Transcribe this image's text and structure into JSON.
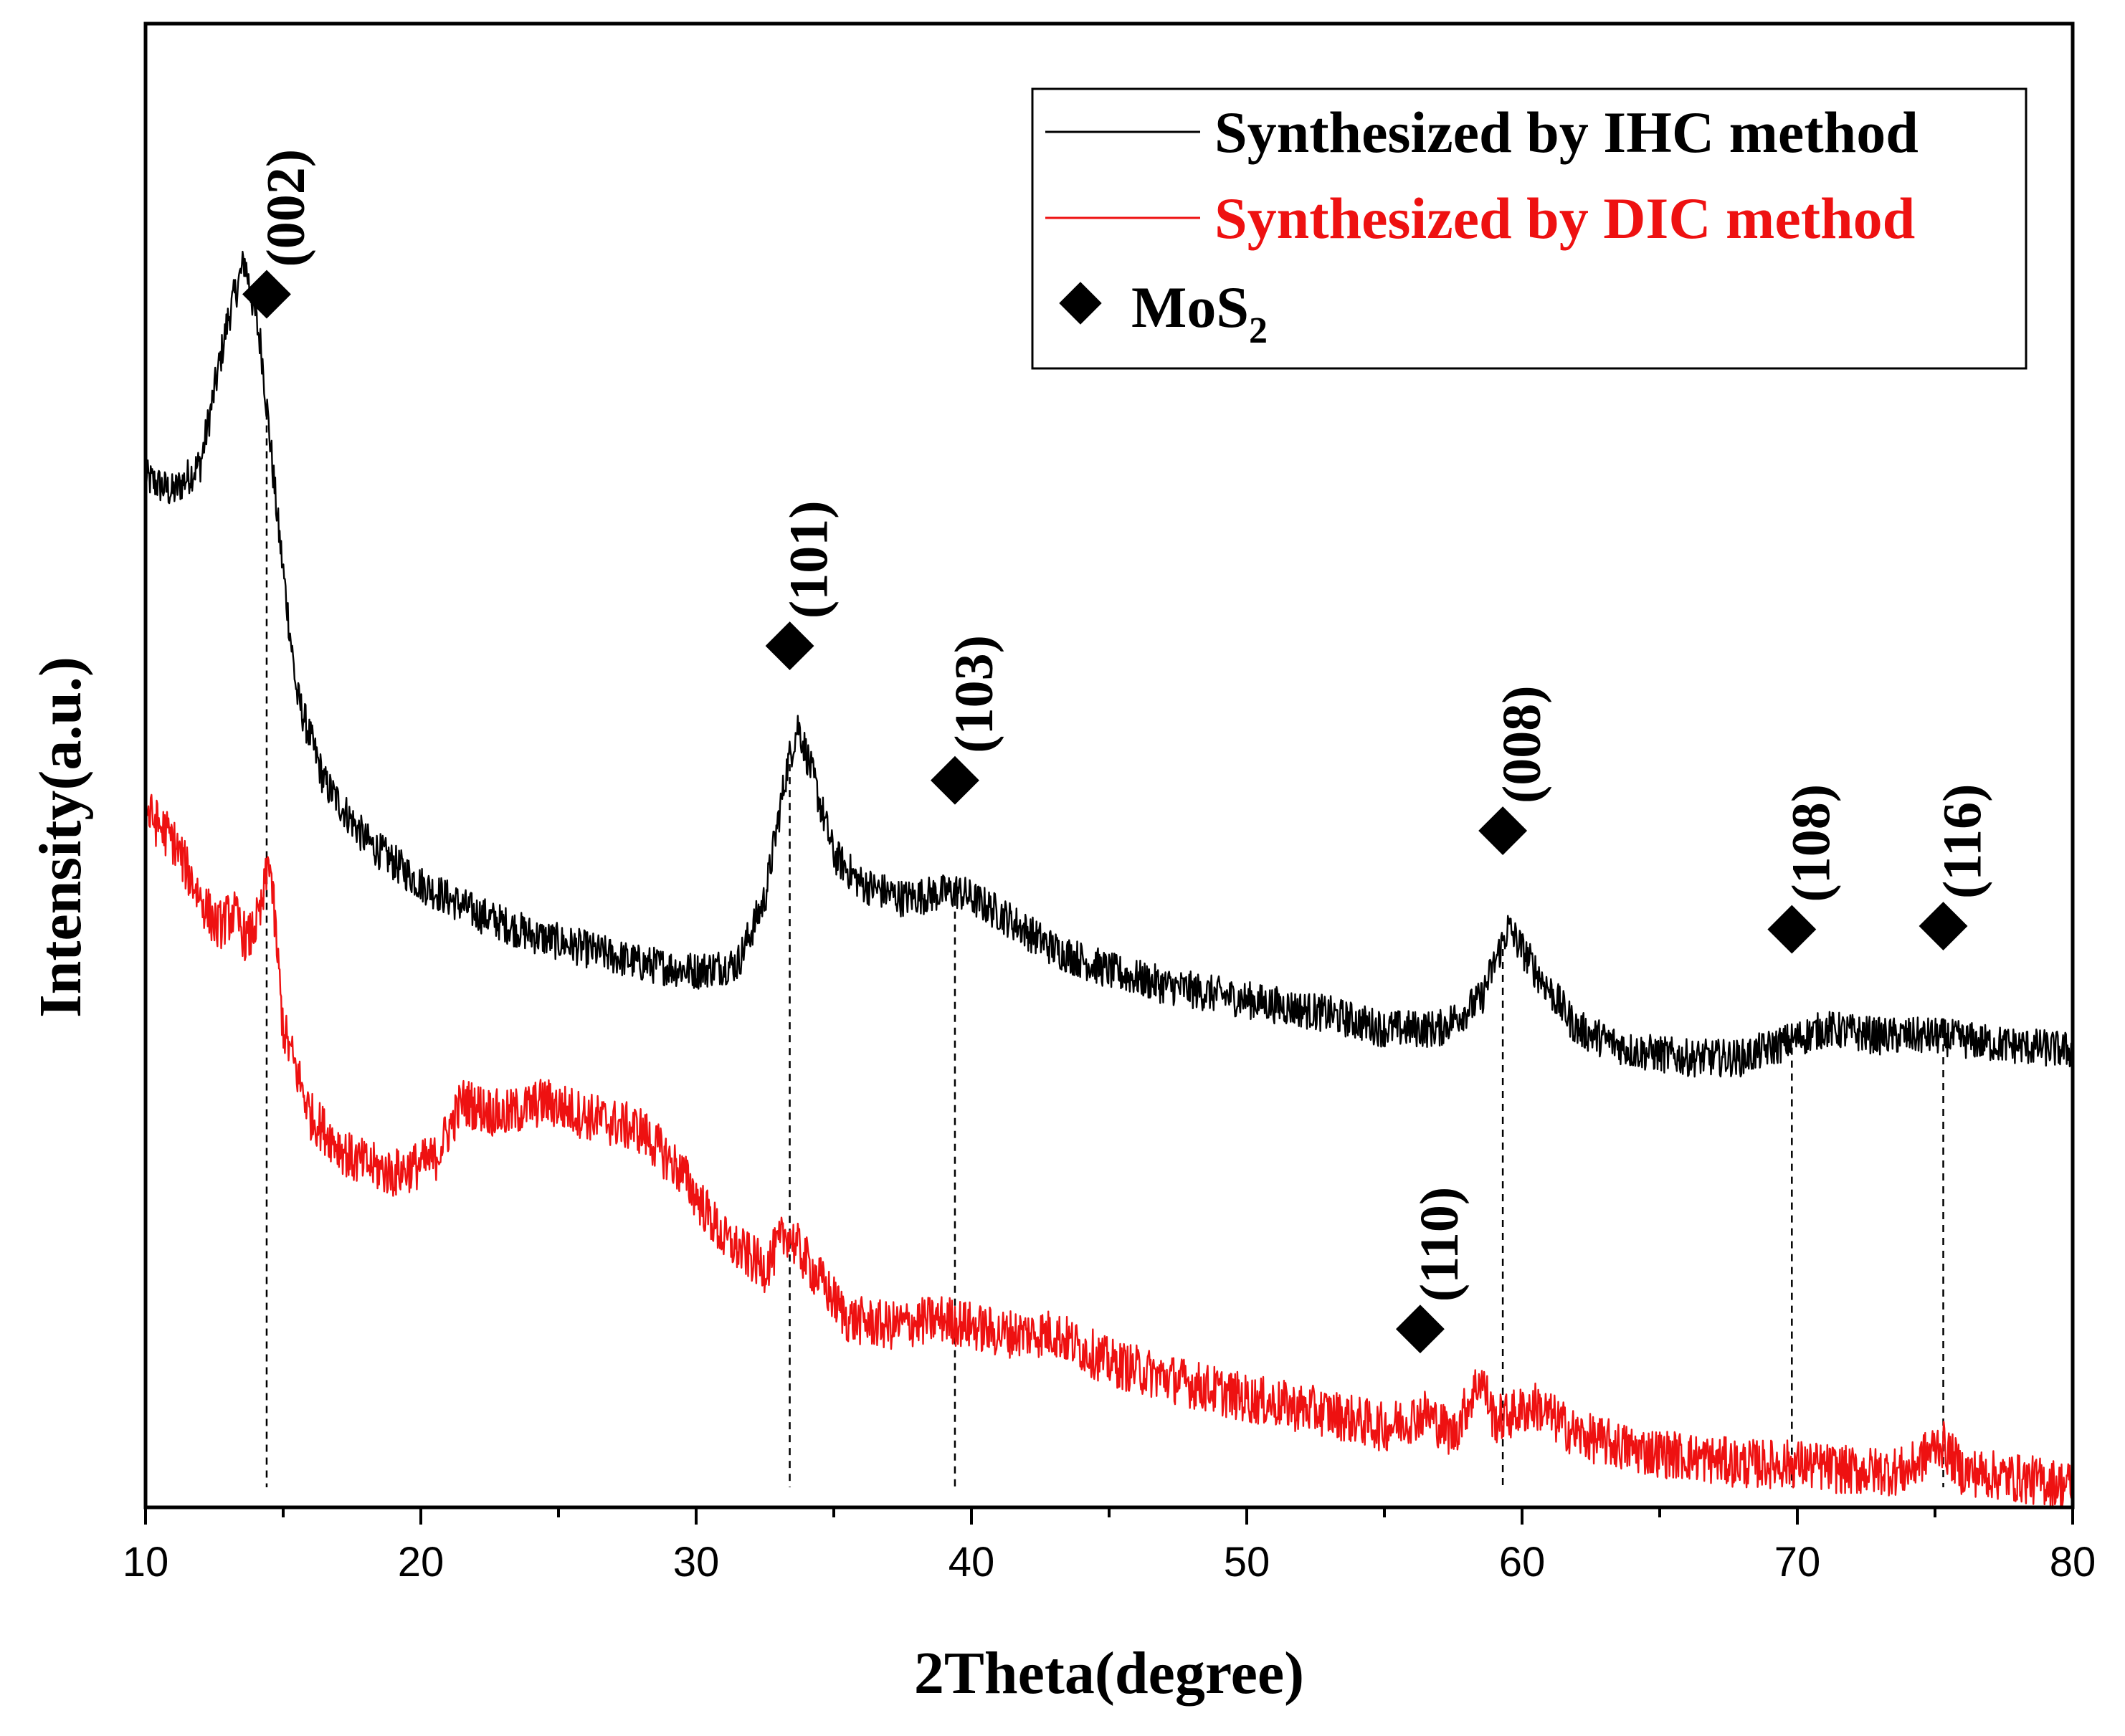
{
  "chart_data": {
    "type": "line",
    "title": "",
    "xlabel": "2Theta(degree)",
    "ylabel": "Intensity(a.u.)",
    "xlim": [
      10,
      80
    ],
    "ylim": [
      0,
      100
    ],
    "x_ticks": [
      10,
      20,
      30,
      40,
      50,
      60,
      70,
      80
    ],
    "y_ticks_shown": false,
    "grid": false,
    "legend_position": "top-right",
    "series": [
      {
        "name": "Synthesized by IHC method",
        "color": "#000000",
        "points": [
          [
            10,
            71
          ],
          [
            11,
            70
          ],
          [
            12,
            72
          ],
          [
            13,
            82
          ],
          [
            13.6,
            86
          ],
          [
            14.2,
            80
          ],
          [
            14.8,
            68
          ],
          [
            15.5,
            56
          ],
          [
            16.5,
            50
          ],
          [
            18,
            46
          ],
          [
            20,
            43
          ],
          [
            22,
            41
          ],
          [
            24,
            39.5
          ],
          [
            26,
            38.5
          ],
          [
            28,
            37.5
          ],
          [
            30,
            37
          ],
          [
            31.5,
            37.5
          ],
          [
            32.5,
            42
          ],
          [
            33.3,
            51
          ],
          [
            33.7,
            54
          ],
          [
            34.3,
            50
          ],
          [
            35,
            45
          ],
          [
            36,
            43
          ],
          [
            37.5,
            42
          ],
          [
            39.5,
            42.5
          ],
          [
            41,
            41
          ],
          [
            43,
            38.5
          ],
          [
            45,
            37
          ],
          [
            47,
            36
          ],
          [
            50,
            35
          ],
          [
            53,
            34
          ],
          [
            55,
            33
          ],
          [
            57,
            33
          ],
          [
            58.5,
            35
          ],
          [
            59.5,
            40
          ],
          [
            60.5,
            37
          ],
          [
            62,
            33
          ],
          [
            64,
            31.5
          ],
          [
            66,
            31
          ],
          [
            68,
            31
          ],
          [
            69.5,
            32
          ],
          [
            71,
            33
          ],
          [
            73,
            32.5
          ],
          [
            75,
            32.5
          ],
          [
            77,
            32
          ],
          [
            80,
            31.5
          ]
        ]
      },
      {
        "name": "Synthesized by DIC method",
        "color": "#ee1111",
        "points": [
          [
            10,
            48
          ],
          [
            11,
            46
          ],
          [
            12,
            42
          ],
          [
            12.6,
            40
          ],
          [
            13.2,
            41
          ],
          [
            13.7,
            39
          ],
          [
            14.2,
            41
          ],
          [
            14.5,
            45
          ],
          [
            15,
            33
          ],
          [
            16,
            27
          ],
          [
            17.5,
            24
          ],
          [
            19,
            23
          ],
          [
            20.5,
            24
          ],
          [
            21.5,
            28
          ],
          [
            23,
            27
          ],
          [
            24.5,
            28
          ],
          [
            26,
            27
          ],
          [
            28,
            26
          ],
          [
            29.5,
            23
          ],
          [
            31,
            18.5
          ],
          [
            32.5,
            16.5
          ],
          [
            33.3,
            19
          ],
          [
            34,
            17
          ],
          [
            35.5,
            13
          ],
          [
            37,
            12.5
          ],
          [
            39,
            13
          ],
          [
            41,
            12
          ],
          [
            43,
            12
          ],
          [
            45,
            10
          ],
          [
            47,
            9
          ],
          [
            50,
            7.5
          ],
          [
            53,
            6.5
          ],
          [
            55,
            5.5
          ],
          [
            56.5,
            6.5
          ],
          [
            57.5,
            5
          ],
          [
            58.5,
            9
          ],
          [
            59,
            6
          ],
          [
            60.5,
            7
          ],
          [
            62,
            5
          ],
          [
            64,
            4
          ],
          [
            66,
            3.5
          ],
          [
            68,
            3
          ],
          [
            70,
            3
          ],
          [
            72,
            2.5
          ],
          [
            74,
            2.5
          ],
          [
            75.2,
            4.5
          ],
          [
            76,
            2.5
          ],
          [
            78,
            2
          ],
          [
            80,
            1.5
          ]
        ]
      }
    ],
    "peaks": [
      {
        "label": "(002)",
        "x": 14.4
      },
      {
        "label": "(101)",
        "x": 33.4
      },
      {
        "label": "(103)",
        "x": 39.4
      },
      {
        "label": "(110)",
        "x": 56.3
      },
      {
        "label": "(008)",
        "x": 59.3
      },
      {
        "label": "(108)",
        "x": 69.8
      },
      {
        "label": "(116)",
        "x": 75.3
      }
    ],
    "legend": {
      "entries": [
        "Synthesized by IHC method",
        "Synthesized by DIC method"
      ],
      "marker_label": "MoS",
      "marker_label_sub": "2"
    }
  }
}
